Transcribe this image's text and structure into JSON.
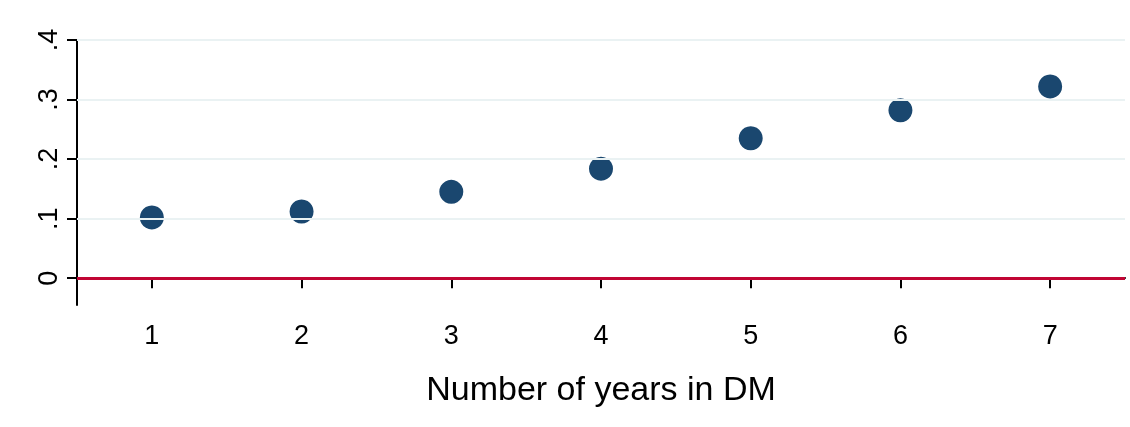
{
  "chart_data": {
    "type": "scatter",
    "xlabel": "Number of years in DM",
    "x": [
      1,
      2,
      3,
      4,
      5,
      6,
      7
    ],
    "series": [
      {
        "color": "#1a476f",
        "values": [
          0.102,
          0.112,
          0.145,
          0.184,
          0.235,
          0.282,
          0.322
        ]
      }
    ],
    "xlim": [
      0.5,
      7.5
    ],
    "xticks": [
      1,
      2,
      3,
      4,
      5,
      6,
      7
    ],
    "ylim": [
      -0.045,
      0.4
    ],
    "yticks": [
      0,
      {
        "value": 0.1,
        "label": ".1"
      },
      {
        "value": 0.2,
        "label": ".2"
      },
      {
        "value": 0.3,
        "label": ".3"
      },
      {
        "value": 0.4,
        "label": ".4"
      }
    ],
    "grid": "y",
    "marker": "circle",
    "ref_lines": [
      {
        "axis": "y",
        "value": 0,
        "color": "#c10534"
      }
    ]
  }
}
